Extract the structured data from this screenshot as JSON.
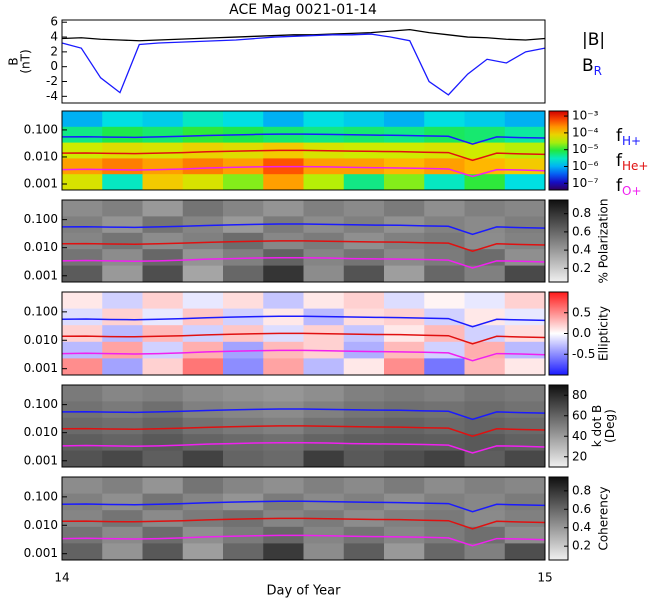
{
  "chart_data": [
    {
      "type": "line",
      "title": "ACE Mag 0021-01-14",
      "ylabel": [
        "B",
        "(nT)"
      ],
      "ylim": [
        -4.9,
        6.3
      ],
      "yticks": [
        -4,
        -2,
        0,
        2,
        4,
        6
      ],
      "x": [
        14.0,
        14.04,
        14.08,
        14.12,
        14.16,
        14.2,
        14.24,
        14.28,
        14.32,
        14.36,
        14.4,
        14.44,
        14.48,
        14.52,
        14.56,
        14.6,
        14.64,
        14.68,
        14.72,
        14.76,
        14.8,
        14.84,
        14.88,
        14.92,
        14.96,
        15.0
      ],
      "series": [
        {
          "name": "|B|",
          "color": "#000000",
          "values": [
            3.8,
            3.9,
            3.7,
            3.6,
            3.5,
            3.6,
            3.7,
            3.8,
            3.9,
            4.0,
            4.1,
            4.2,
            4.3,
            4.3,
            4.4,
            4.5,
            4.6,
            4.8,
            5.0,
            4.6,
            4.3,
            4.0,
            3.9,
            3.7,
            3.6,
            3.8
          ]
        },
        {
          "name": "B",
          "subscript": "R",
          "color": "#1a1aff",
          "values": [
            3.2,
            2.5,
            -1.5,
            -3.5,
            3.0,
            3.2,
            3.3,
            3.4,
            3.5,
            3.6,
            3.8,
            4.0,
            4.1,
            4.2,
            4.3,
            4.3,
            4.4,
            4.0,
            3.5,
            -2.0,
            -3.8,
            -1.0,
            1.0,
            0.5,
            2.0,
            2.5
          ]
        }
      ]
    },
    {
      "type": "heatmap",
      "colormap": "rainbow",
      "log_color": true,
      "clim": [
        4e-08,
        0.002
      ],
      "cticks": [
        {
          "value": 0.001,
          "label": "10⁻³"
        },
        {
          "value": 0.0001,
          "label": "10⁻⁴"
        },
        {
          "value": 1e-05,
          "label": "10⁻⁵"
        },
        {
          "value": 1e-06,
          "label": "10⁻⁶"
        },
        {
          "value": 1e-07,
          "label": "10⁻⁷"
        }
      ],
      "ylim": [
        0.0006,
        0.5
      ],
      "yticks": [
        0.001,
        {
          "value": 0.01,
          "label": "0.010"
        },
        {
          "value": 0.1,
          "label": "0.100"
        }
      ],
      "matrix": [
        [
          1e-06,
          2e-06,
          1.5e-06,
          3e-06,
          2e-06,
          1e-06,
          2e-06,
          1.5e-06,
          1e-06,
          2e-06,
          1.5e-06,
          1e-06
        ],
        [
          5e-06,
          8e-06,
          6e-06,
          1e-05,
          8e-06,
          6e-06,
          5e-06,
          6e-06,
          5e-06,
          7e-06,
          6e-06,
          4e-06
        ],
        [
          4e-05,
          6e-05,
          5e-05,
          8e-05,
          6e-05,
          0.0001,
          5e-05,
          4e-05,
          4e-05,
          5e-05,
          4e-05,
          3e-05
        ],
        [
          0.0002,
          0.0003,
          0.0002,
          0.0003,
          0.0002,
          0.0005,
          0.0002,
          0.0002,
          0.00015,
          0.0002,
          0.00015,
          0.0001
        ],
        [
          5e-05,
          3e-06,
          0.0001,
          5e-05,
          2e-05,
          0.0002,
          3e-05,
          5e-06,
          2e-05,
          3e-06,
          1e-05,
          2e-06
        ]
      ],
      "x": [
        14.0,
        14.05,
        14.1,
        14.15,
        14.2,
        14.25,
        14.3,
        14.35,
        14.4,
        14.45,
        14.5,
        14.55,
        14.6,
        14.65,
        14.7,
        14.75,
        14.8,
        14.85,
        14.9,
        14.95,
        15.0
      ],
      "series": [
        {
          "name": "f",
          "subscript": "H+",
          "color": "#1a1aff",
          "values": [
            0.055,
            0.056,
            0.054,
            0.053,
            0.055,
            0.058,
            0.062,
            0.065,
            0.068,
            0.07,
            0.07,
            0.068,
            0.066,
            0.064,
            0.063,
            0.06,
            0.058,
            0.03,
            0.055,
            0.052,
            0.05
          ]
        },
        {
          "name": "f",
          "subscript": "He+",
          "color": "#e01010",
          "values": [
            0.0138,
            0.014,
            0.0135,
            0.0133,
            0.0138,
            0.0145,
            0.0155,
            0.0163,
            0.017,
            0.0175,
            0.0175,
            0.017,
            0.0165,
            0.016,
            0.0158,
            0.015,
            0.0145,
            0.0075,
            0.0138,
            0.013,
            0.0125
          ]
        },
        {
          "name": "f",
          "subscript": "O+",
          "color": "#f020f0",
          "values": [
            0.0034,
            0.0035,
            0.0034,
            0.0033,
            0.0034,
            0.0036,
            0.0039,
            0.0041,
            0.0043,
            0.0044,
            0.0044,
            0.0043,
            0.0041,
            0.004,
            0.0039,
            0.0038,
            0.0036,
            0.0019,
            0.0034,
            0.0033,
            0.0031
          ]
        }
      ]
    },
    {
      "type": "heatmap",
      "colormap": "gray",
      "clim": [
        0.05,
        0.95
      ],
      "cticks": [
        0.2,
        0.4,
        0.6,
        0.8
      ],
      "colorbar_label": [
        "% Polarization"
      ],
      "ylim": [
        0.0006,
        0.5
      ],
      "yticks": [
        0.001,
        {
          "value": 0.01,
          "label": "0.010"
        },
        {
          "value": 0.1,
          "label": "0.100"
        }
      ],
      "matrix": [
        [
          0.45,
          0.5,
          0.4,
          0.55,
          0.48,
          0.42,
          0.5,
          0.46,
          0.52,
          0.44,
          0.5,
          0.47
        ],
        [
          0.5,
          0.42,
          0.55,
          0.48,
          0.4,
          0.52,
          0.45,
          0.5,
          0.43,
          0.49,
          0.46,
          0.51
        ],
        [
          0.48,
          0.55,
          0.45,
          0.5,
          0.58,
          0.47,
          0.52,
          0.44,
          0.5,
          0.53,
          0.45,
          0.49
        ],
        [
          0.55,
          0.45,
          0.6,
          0.42,
          0.5,
          0.62,
          0.48,
          0.55,
          0.46,
          0.52,
          0.58,
          0.44
        ],
        [
          0.65,
          0.4,
          0.7,
          0.35,
          0.6,
          0.8,
          0.45,
          0.68,
          0.38,
          0.6,
          0.5,
          0.72
        ]
      ]
    },
    {
      "type": "heatmap",
      "colormap": "bwr",
      "clim": [
        -1,
        1
      ],
      "cticks": [
        -0.5,
        {
          "value": 0,
          "label": "0.0"
        },
        0.5
      ],
      "colorbar_label": [
        "Ellipticity"
      ],
      "ylim": [
        0.0006,
        0.5
      ],
      "yticks": [
        0.001,
        {
          "value": 0.01,
          "label": "0.010"
        },
        {
          "value": 0.1,
          "label": "0.100"
        }
      ],
      "matrix": [
        [
          0.1,
          -0.2,
          0.2,
          -0.1,
          0.15,
          -0.25,
          0.1,
          0.2,
          -0.15,
          0.05,
          -0.1,
          0.2
        ],
        [
          -0.15,
          0.2,
          -0.1,
          0.25,
          -0.2,
          0.1,
          -0.3,
          0.15,
          0.2,
          -0.2,
          0.1,
          -0.1
        ],
        [
          0.2,
          -0.3,
          0.3,
          -0.2,
          0.25,
          -0.15,
          0.2,
          -0.25,
          0.1,
          0.3,
          -0.2,
          0.15
        ],
        [
          -0.3,
          0.4,
          -0.2,
          0.35,
          -0.4,
          0.3,
          0.2,
          -0.35,
          0.3,
          -0.2,
          0.35,
          -0.3
        ],
        [
          0.5,
          -0.4,
          0.2,
          0.6,
          -0.5,
          0.4,
          -0.3,
          0.1,
          0.5,
          -0.6,
          0.3,
          0.1
        ]
      ]
    },
    {
      "type": "heatmap",
      "colormap": "gray",
      "clim": [
        10,
        90
      ],
      "cticks": [
        20,
        40,
        60,
        80
      ],
      "colorbar_label": [
        "k dot B",
        "(Deg)"
      ],
      "ylim": [
        0.0006,
        0.5
      ],
      "yticks": [
        0.001,
        {
          "value": 0.01,
          "label": "0.010"
        },
        {
          "value": 0.1,
          "label": "0.100"
        }
      ],
      "matrix": [
        [
          52,
          48,
          50,
          46,
          44,
          42,
          45,
          50,
          52,
          50,
          54,
          52
        ],
        [
          55,
          52,
          56,
          50,
          48,
          46,
          50,
          54,
          56,
          55,
          57,
          55
        ],
        [
          58,
          56,
          60,
          55,
          52,
          50,
          55,
          58,
          60,
          58,
          60,
          58
        ],
        [
          62,
          60,
          64,
          60,
          58,
          56,
          60,
          62,
          63,
          62,
          64,
          61
        ],
        [
          66,
          70,
          62,
          72,
          60,
          58,
          74,
          64,
          68,
          72,
          62,
          70
        ]
      ]
    },
    {
      "type": "heatmap",
      "colormap": "gray",
      "clim": [
        0.05,
        0.95
      ],
      "cticks": [
        0.2,
        0.4,
        0.6,
        0.8
      ],
      "colorbar_label": [
        "Coherency"
      ],
      "ylim": [
        0.0006,
        0.5
      ],
      "yticks": [
        0.001,
        {
          "value": 0.01,
          "label": "0.010"
        },
        {
          "value": 0.1,
          "label": "0.100"
        }
      ],
      "xlim": [
        14,
        15
      ],
      "xticks": [
        14,
        15
      ],
      "xlabel": "Day of Year",
      "matrix": [
        [
          0.45,
          0.5,
          0.42,
          0.55,
          0.48,
          0.44,
          0.5,
          0.46,
          0.52,
          0.45,
          0.5,
          0.47
        ],
        [
          0.5,
          0.44,
          0.55,
          0.48,
          0.42,
          0.52,
          0.46,
          0.5,
          0.44,
          0.5,
          0.47,
          0.52
        ],
        [
          0.48,
          0.55,
          0.46,
          0.52,
          0.56,
          0.48,
          0.52,
          0.45,
          0.5,
          0.53,
          0.46,
          0.5
        ],
        [
          0.55,
          0.46,
          0.58,
          0.44,
          0.52,
          0.6,
          0.48,
          0.55,
          0.47,
          0.52,
          0.57,
          0.45
        ],
        [
          0.62,
          0.42,
          0.66,
          0.38,
          0.6,
          0.78,
          0.45,
          0.64,
          0.4,
          0.6,
          0.5,
          0.7
        ]
      ]
    }
  ]
}
